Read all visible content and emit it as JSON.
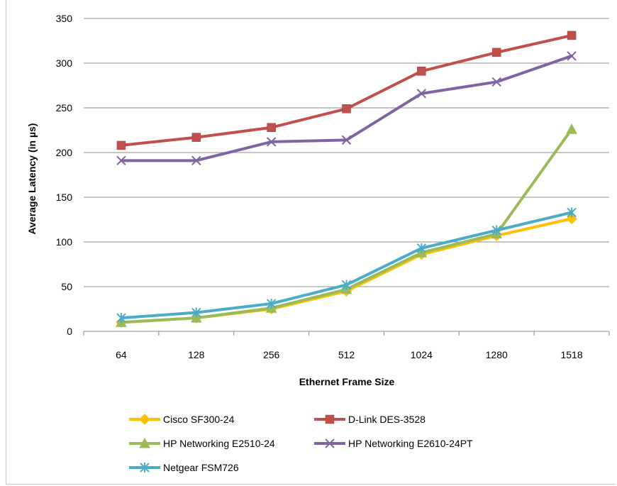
{
  "chart_data": {
    "type": "line",
    "categories": [
      "64",
      "128",
      "256",
      "512",
      "1024",
      "1280",
      "1518"
    ],
    "xlabel": "Ethernet Frame Size",
    "ylabel": "Average Latency (in µs)",
    "ylim": [
      0,
      350
    ],
    "yticks": [
      "0",
      "50",
      "100",
      "150",
      "200",
      "250",
      "300",
      "350"
    ],
    "grid": "horizontal",
    "legend_position": "bottom",
    "series": [
      {
        "name": "Cisco SF300-24",
        "color": "#ffc000",
        "marker": "diamond",
        "values": [
          10,
          15,
          25,
          45,
          86,
          107,
          126
        ]
      },
      {
        "name": "D-Link DES-3528",
        "color": "#c0504d",
        "marker": "square",
        "values": [
          208,
          217,
          228,
          249,
          291,
          312,
          331
        ]
      },
      {
        "name": "HP Networking E2510-24",
        "color": "#9bbb59",
        "marker": "triangle",
        "values": [
          10,
          15,
          26,
          47,
          88,
          109,
          226
        ]
      },
      {
        "name": "HP Networking E2610-24PT",
        "color": "#8064a2",
        "marker": "x",
        "values": [
          191,
          191,
          212,
          214,
          266,
          279,
          308
        ]
      },
      {
        "name": "Netgear FSM726",
        "color": "#4bacc6",
        "marker": "star",
        "values": [
          15,
          21,
          31,
          52,
          93,
          113,
          133
        ]
      }
    ]
  }
}
